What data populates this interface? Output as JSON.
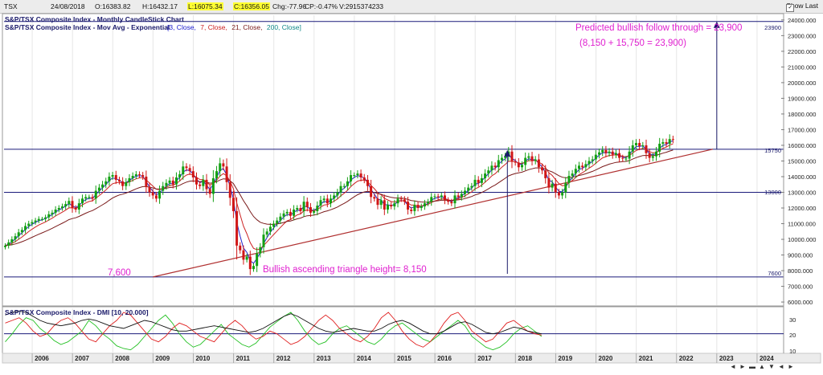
{
  "header": {
    "symbol": "TSX",
    "date": "24/08/2018",
    "open": "O:16383.82",
    "high": "H:16432.17",
    "low": "L:16075.34",
    "close": "C:16356.05",
    "change": "Chg:-77.96",
    "change_pct": "CP:-0.47%",
    "volume": "V:2915374233",
    "show_last_label": "Show Last"
  },
  "main_chart": {
    "title": "S&P/TSX Composite Index - Monthly CandleStick Chart",
    "ma_legend_prefix": "S&P/TSX Composite Index - Mov Avg - Exponential",
    "ma_legend_params": [
      {
        "text": "[3, Close,",
        "color": "#1a1acc"
      },
      {
        "text": "7, Close,",
        "color": "#cc2222"
      },
      {
        "text": "21, Close,",
        "color": "#7a1a1a"
      },
      {
        "text": "200, Close]",
        "color": "#118888"
      }
    ],
    "annotation_target": "Predicted bullish follow through = 23,900",
    "annotation_calc": "(8,150 + 15,750 = 23,900)",
    "annotation_height": "Bullish ascending triangle height= 8,150",
    "annotation_low": "7,600",
    "level_labels": [
      "23900",
      "15750",
      "13000",
      "7600"
    ]
  },
  "dmi_panel": {
    "title": "S&P/TSX Composite Index - DMI [10, 20.000]",
    "y_ticks": [
      "30",
      "20",
      "10"
    ]
  },
  "colors": {
    "bull": "#13a013",
    "bear": "#d01616",
    "ema3": "#2222cc",
    "ema7": "#cc2222",
    "ema21": "#7a1a1a",
    "level_line": "#1a1a7a",
    "trend_line": "#b03030",
    "annotation": "#e020d0",
    "arrow": "#1a1a6a",
    "dmi_plus": "#22c022",
    "dmi_minus": "#e02020",
    "adx": "#111111"
  },
  "nav_buttons": [
    "◄",
    "►",
    "▬",
    "▲",
    "▼",
    "◄",
    "►"
  ],
  "chart_data": [
    {
      "type": "candlestick",
      "title": "S&P/TSX Composite Index - Monthly CandleStick Chart",
      "x_axis_labels": [
        "2006",
        "2007",
        "2008",
        "2009",
        "2010",
        "2011",
        "2012",
        "2013",
        "2014",
        "2015",
        "2016",
        "2017",
        "2018",
        "2019",
        "2020",
        "2021",
        "2022",
        "2023",
        "2024"
      ],
      "y_axis_labels": [
        "6000.000",
        "7000.000",
        "8000.000",
        "9000.000",
        "10000.000",
        "11000.000",
        "12000.000",
        "13000.000",
        "14000.000",
        "15000.000",
        "16000.000",
        "17000.000",
        "18000.000",
        "19000.000",
        "20000.000",
        "21000.000",
        "22000.000",
        "23000.000",
        "24000.000"
      ],
      "ylim": [
        5800,
        24300
      ],
      "x_range": [
        2005.3,
        2024.6
      ],
      "series": [
        {
          "name": "3, Close",
          "kind": "ema"
        },
        {
          "name": "7, Close",
          "kind": "ema"
        },
        {
          "name": "21, Close",
          "kind": "ema"
        }
      ],
      "monthly_closes": [
        {
          "start": 2005.33,
          "closes": [
            9600,
            9800,
            10000,
            10200,
            10450,
            10600,
            10850,
            11000,
            11100,
            11200,
            11300,
            11300,
            11400,
            11600,
            11700,
            11900,
            12000,
            12100,
            12250,
            12450,
            12000,
            11900,
            12300,
            12600,
            12700,
            12700,
            12600,
            13100,
            13300,
            13500,
            13700,
            14000,
            14100,
            13800,
            13700,
            13400,
            13650,
            13900,
            14050,
            14150,
            14100,
            14000,
            13350,
            13000,
            12800,
            12600,
            13100,
            13400,
            13600,
            13750,
            13500,
            13950,
            14150,
            14650,
            14550,
            14350,
            13950,
            13500,
            13400,
            13800,
            13200,
            12900,
            13900,
            14350,
            14850,
            14650,
            13650,
            12650,
            11800,
            9600,
            9300,
            8700,
            8900,
            8100,
            8300,
            9100,
            9500,
            10300,
            10500,
            10800,
            11000,
            11200,
            11450,
            11650,
            11750,
            11500,
            11900,
            12000,
            11800,
            12400,
            12050,
            11700,
            11800,
            12150,
            12500,
            12600,
            12300,
            12600,
            12800,
            13000,
            13400,
            13400,
            13700,
            14100,
            14100,
            14200,
            13950,
            13800,
            13400,
            12700,
            12600,
            12200,
            12500,
            11900,
            12200,
            12100,
            12300,
            12600,
            12550,
            12400,
            11900,
            11800,
            12200,
            12000,
            12100,
            12300,
            12400,
            12700,
            12750,
            12700,
            12800,
            12500,
            12400,
            12300,
            12800,
            12700,
            12900,
            13100,
            13300,
            13400,
            13800,
            13600,
            13900,
            14200,
            14400,
            14700,
            14600,
            15050,
            15200,
            15300,
            15600,
            14950,
            14900,
            14600,
            14750,
            15200,
            15300,
            15000,
            15100,
            14600,
            14400,
            13900,
            13300,
            13550,
            13000,
            12800,
            13000,
            13600,
            14050,
            14200,
            14500,
            14700,
            14600,
            14800,
            15000,
            15100,
            15400,
            15550,
            15700,
            15500,
            15600,
            15400,
            15500,
            15200,
            15150,
            15150,
            15600,
            16000,
            16150,
            15950,
            16000,
            15500,
            15200,
            15300,
            15600,
            16100,
            16200,
            16100,
            16400,
            16350
          ]
        }
      ],
      "horizontal_levels": [
        23900,
        15750,
        13000,
        7600
      ],
      "trend_line": {
        "from": {
          "x": 2009.0,
          "y": 7600
        },
        "to": {
          "x": 2022.9,
          "y": 15750
        }
      },
      "annotations": [
        {
          "text": "Predicted bullish follow through = 23,900",
          "x": 2020.8,
          "y": 23900
        },
        {
          "text": "(8,150 + 15,750 = 23,900)",
          "x": 2020.8,
          "y": 23000
        },
        {
          "text": "Bullish ascending triangle height= 8,150",
          "x": 2012.7,
          "y": 8250
        },
        {
          "text": "7,600",
          "x": 2008.0,
          "y": 8100
        }
      ],
      "arrows": [
        {
          "x": 2017.8,
          "from_y": 7800,
          "to_y": 15700
        },
        {
          "x": 2023.0,
          "from_y": 15750,
          "to_y": 23900
        }
      ]
    },
    {
      "type": "line",
      "title": "S&P/TSX Composite Index - DMI [10, 20.000]",
      "y_axis_labels": [
        "10",
        "20",
        "30"
      ],
      "ylim": [
        6,
        39
      ],
      "reference_level": 20,
      "series": [
        {
          "name": "+DI",
          "values": [
            14,
            20,
            27,
            32,
            30,
            24,
            20,
            15,
            12,
            14,
            18,
            22,
            30,
            26,
            20,
            16,
            11,
            9,
            8,
            12,
            18,
            24,
            30,
            34,
            28,
            20,
            14,
            10,
            12,
            17,
            22,
            27,
            20,
            16,
            12,
            10,
            13,
            19,
            25,
            29,
            33,
            36,
            30,
            22,
            16,
            12,
            14,
            20,
            24,
            26,
            22,
            18,
            14,
            12,
            16,
            22,
            26,
            28,
            24,
            20,
            16,
            14,
            18,
            22,
            26,
            30,
            26,
            18,
            14,
            10,
            8,
            10,
            14,
            20,
            24,
            26,
            22,
            18
          ]
        },
        {
          "name": "-DI",
          "values": [
            28,
            30,
            32,
            28,
            22,
            18,
            20,
            26,
            30,
            32,
            28,
            22,
            16,
            14,
            20,
            26,
            30,
            36,
            34,
            28,
            22,
            16,
            14,
            18,
            24,
            28,
            26,
            22,
            18,
            16,
            14,
            20,
            26,
            30,
            26,
            20,
            16,
            18,
            22,
            20,
            16,
            12,
            14,
            18,
            24,
            30,
            34,
            30,
            24,
            20,
            16,
            14,
            18,
            24,
            32,
            36,
            30,
            22,
            16,
            12,
            10,
            14,
            20,
            28,
            34,
            36,
            30,
            22,
            18,
            14,
            16,
            22,
            28,
            30,
            26,
            22,
            20,
            19
          ]
        },
        {
          "name": "ADX",
          "values": [
            34,
            36,
            37,
            36,
            33,
            30,
            28,
            27,
            26,
            27,
            28,
            30,
            31,
            30,
            28,
            26,
            25,
            24,
            26,
            28,
            30,
            29,
            27,
            25,
            23,
            22,
            22,
            23,
            24,
            25,
            26,
            25,
            24,
            23,
            22,
            21,
            22,
            24,
            27,
            30,
            33,
            35,
            33,
            30,
            27,
            24,
            22,
            21,
            22,
            23,
            24,
            23,
            22,
            22,
            24,
            27,
            29,
            30,
            28,
            25,
            22,
            20,
            20,
            22,
            25,
            28,
            29,
            27,
            24,
            21,
            20,
            21,
            23,
            25,
            24,
            22,
            21,
            20
          ]
        }
      ]
    }
  ]
}
